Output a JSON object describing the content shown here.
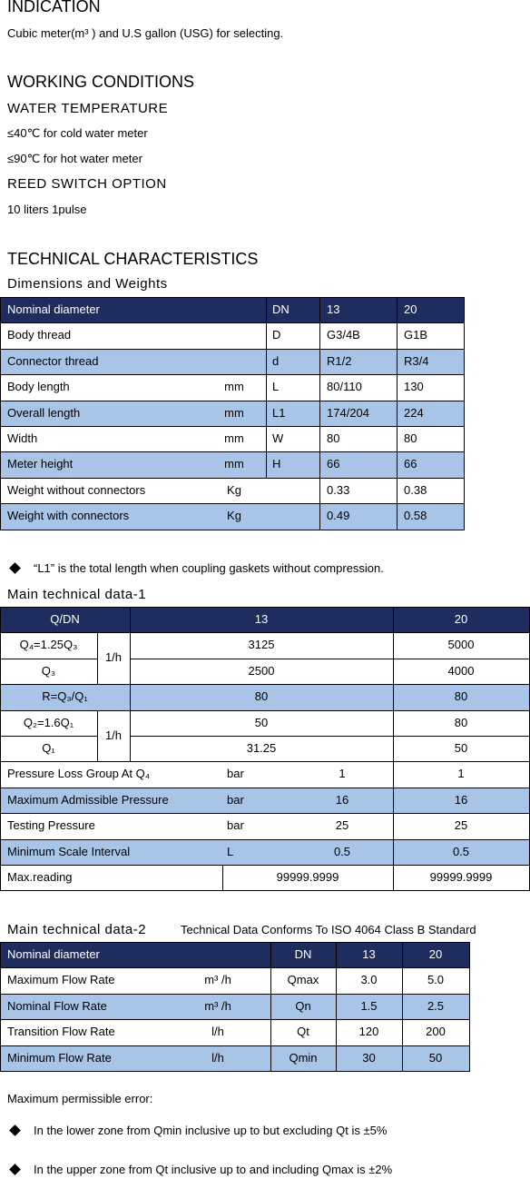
{
  "indication": {
    "title": "INDICATION",
    "text": "Cubic meter(m³ ) and U.S gallon (USG) for selecting."
  },
  "working_conditions": {
    "title": "WORKING CONDITIONS",
    "water_temperature": "WATER TEMPERATURE",
    "lines": [
      "≤40℃ for cold water meter",
      "≤90℃ for hot water meter"
    ],
    "reed_switch": "REED SWITCH OPTION",
    "reed_text": "10 liters 1pulse"
  },
  "technical": {
    "title": "TECHNICAL CHARACTERISTICS",
    "dimensions_title": "Dimensions and Weights",
    "dimensions_table": [
      {
        "label": "Nominal diameter",
        "symbol": "DN",
        "values": [
          "13",
          "20"
        ]
      },
      {
        "label": "Body thread",
        "symbol": "D",
        "values": [
          "G3/4B",
          "G1B"
        ]
      },
      {
        "label": "Connector thread",
        "symbol": "d",
        "values": [
          "R1/2",
          "R3/4"
        ]
      },
      {
        "label": "Body length",
        "unit": "mm",
        "symbol": "L",
        "values": [
          "80/110",
          "130"
        ]
      },
      {
        "label": "Overall length",
        "unit": "mm",
        "symbol": "L1",
        "values": [
          "174/204",
          "224"
        ]
      },
      {
        "label": "Width",
        "unit": "mm",
        "symbol": "W",
        "values": [
          "80",
          "80"
        ]
      },
      {
        "label": "Meter height",
        "unit": "mm",
        "symbol": "H",
        "values": [
          "66",
          "66"
        ]
      },
      {
        "label": "Weight without connectors",
        "unit": "Kg",
        "values": [
          "0.33",
          "0.38"
        ]
      },
      {
        "label": "Weight with connectors",
        "unit": "Kg",
        "values": [
          "0.49",
          "0.58"
        ]
      }
    ],
    "note": "“L1” is the total length when coupling gaskets without compression.",
    "data1_title": "Main technical data-1",
    "data1_table": [
      {
        "label": "Q/DN",
        "values": [
          "13",
          "20"
        ]
      },
      {
        "unit": "1/h",
        "items": [
          {
            "label": "Q₄=1.25Q₃",
            "values": [
              "3125",
              "5000"
            ]
          },
          {
            "label": "Q₃",
            "values": [
              "2500",
              "4000"
            ]
          }
        ]
      },
      {
        "label": "R=Q₃/Q₁",
        "values": [
          "80",
          "80"
        ]
      },
      {
        "unit": "1/h",
        "items": [
          {
            "label": "Q₂=1.6Q₁",
            "values": [
              "50",
              "80"
            ]
          },
          {
            "label": "Q₁",
            "values": [
              "31.25",
              "50"
            ]
          }
        ]
      },
      {
        "label": "Pressure Loss Group At Q₄",
        "unit": "bar",
        "values": [
          "1",
          "1"
        ]
      },
      {
        "label": "Maximum Admissible Pressure",
        "unit": "bar",
        "values": [
          "16",
          "16"
        ]
      },
      {
        "label": "Testing Pressure",
        "unit": "bar",
        "values": [
          "25",
          "25"
        ]
      },
      {
        "label": "Minimum Scale Interval",
        "unit": "L",
        "values": [
          "0.5",
          "0.5"
        ]
      },
      {
        "label": "Max.reading",
        "values": [
          "99999.9999",
          "99999.9999"
        ]
      }
    ],
    "data2_title": "Main technical data-2",
    "data2_subtitle": "Technical Data Conforms To ISO 4064 Class B Standard",
    "data2_table": [
      {
        "label": "Nominal diameter",
        "symbol": "DN",
        "values": [
          "13",
          "20"
        ]
      },
      {
        "label": "Maximum Flow Rate",
        "unit": "m³ /h",
        "symbol": "Qmax",
        "values": [
          "3.0",
          "5.0"
        ]
      },
      {
        "label": "Nominal Flow Rate",
        "unit": "m³ /h",
        "symbol": "Qn",
        "values": [
          "1.5",
          "2.5"
        ]
      },
      {
        "label": "Transition Flow Rate",
        "unit": "l/h",
        "symbol": "Qt",
        "values": [
          "120",
          "200"
        ]
      },
      {
        "label": "Minimum Flow Rate",
        "unit": "l/h",
        "symbol": "Qmin",
        "values": [
          "30",
          "50"
        ]
      }
    ]
  },
  "errors": {
    "title": "Maximum permissible error:",
    "items": [
      "In the lower zone from Qmin inclusive up to but excluding Qt is ±5%",
      "In the upper zone from Qt inclusive up to and including Qmax is ±2%"
    ]
  }
}
